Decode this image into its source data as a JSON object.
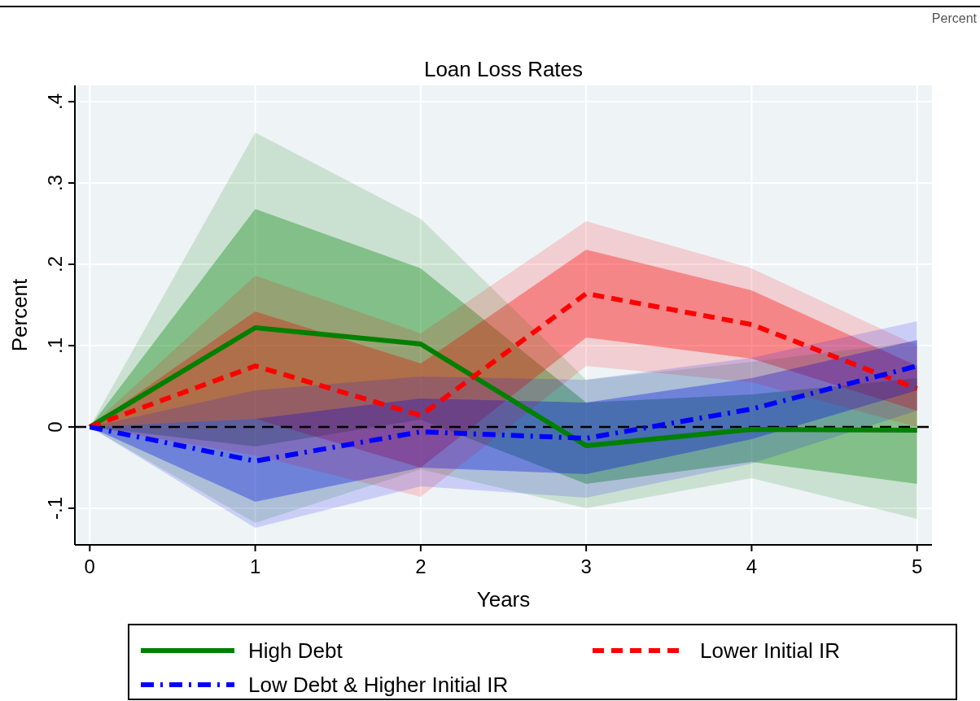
{
  "chart_data": {
    "type": "line",
    "title": "Loan Loss Rates",
    "xlabel": "Years",
    "ylabel": "Percent",
    "annotations": [
      "Percent"
    ],
    "x": [
      0,
      1,
      2,
      3,
      4,
      5
    ],
    "xlim": [
      -0.09,
      5.09
    ],
    "xticks": [
      0,
      1,
      2,
      3,
      4,
      5
    ],
    "ylim": [
      -0.145,
      0.42
    ],
    "yticks": [
      {
        "value": -0.1,
        "label": "-.1"
      },
      {
        "value": 0,
        "label": "0"
      },
      {
        "value": 0.1,
        "label": ".1"
      },
      {
        "value": 0.2,
        "label": ".2"
      },
      {
        "value": 0.3,
        "label": ".3"
      },
      {
        "value": 0.4,
        "label": ".4"
      }
    ],
    "grid": true,
    "legend": "bottom",
    "ref_lines": [
      {
        "axis": "y",
        "value": 0,
        "color": "#000000",
        "line_style": "dashed"
      }
    ],
    "series": [
      {
        "name": "High Debt",
        "color": "#008000",
        "line_style": "solid",
        "values": [
          0,
          0.122,
          0.102,
          -0.023,
          -0.003,
          -0.004
        ],
        "lower": [
          0,
          -0.024,
          0.009,
          -0.07,
          -0.043,
          -0.07
        ],
        "upper": [
          0,
          0.268,
          0.195,
          0.03,
          0.04,
          0.06
        ]
      },
      {
        "name": "Lower Initial IR",
        "color": "#ff0000",
        "line_style": "dashed",
        "values": [
          0,
          0.075,
          0.014,
          0.164,
          0.126,
          0.047
        ],
        "lower": [
          0,
          0.01,
          -0.05,
          0.11,
          0.084,
          0.02
        ],
        "upper": [
          0,
          0.142,
          0.078,
          0.218,
          0.168,
          0.075
        ]
      },
      {
        "name": "Low Debt & Higher Initial IR",
        "color": "#0000ff",
        "line_style": "dashdot",
        "values": [
          0,
          -0.042,
          -0.006,
          -0.014,
          0.022,
          0.075
        ],
        "lower": [
          0,
          -0.092,
          -0.05,
          -0.058,
          -0.015,
          0.045
        ],
        "upper": [
          0,
          0.01,
          0.035,
          0.03,
          0.06,
          0.107
        ]
      },
      {
        "color": "#008000",
        "values": [
          null,
          null,
          null,
          null,
          null,
          null
        ],
        "lower": [
          0,
          -0.118,
          -0.052,
          -0.1,
          -0.063,
          -0.113
        ],
        "upper": [
          0,
          0.362,
          0.256,
          0.058,
          0.08,
          0.105
        ]
      },
      {
        "color": "#ff0000",
        "values": [
          null,
          null,
          null,
          null,
          null,
          null
        ],
        "lower": [
          0,
          -0.035,
          -0.086,
          0.075,
          0.055,
          0.0
        ],
        "upper": [
          0,
          0.186,
          0.115,
          0.253,
          0.195,
          0.1
        ]
      },
      {
        "color": "#0000ff",
        "values": [
          null,
          null,
          null,
          null,
          null,
          null
        ],
        "lower": [
          0,
          -0.124,
          -0.073,
          -0.087,
          -0.045,
          0.02
        ],
        "upper": [
          0,
          0.045,
          0.062,
          0.058,
          0.085,
          0.13
        ]
      }
    ]
  }
}
